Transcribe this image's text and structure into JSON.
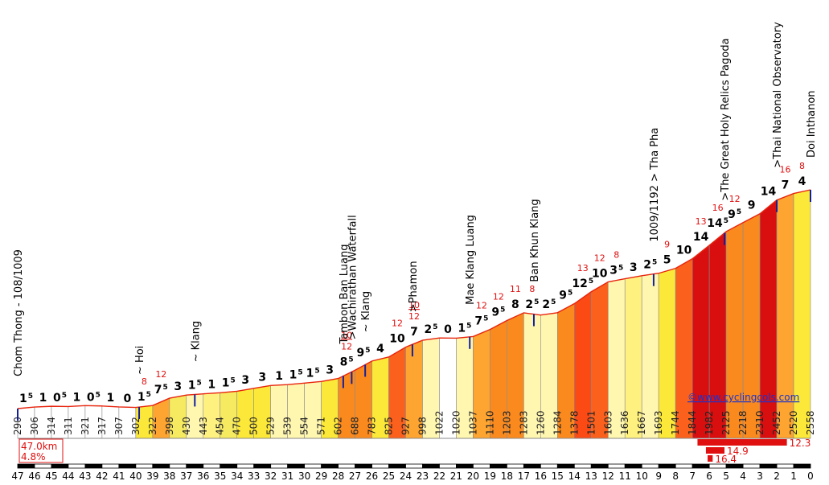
{
  "chart_data": {
    "type": "area",
    "title": "",
    "xlabel": "",
    "ylabel": "",
    "x_reversed": true,
    "x_ticks": [
      "47",
      "46",
      "45",
      "44",
      "43",
      "42",
      "41",
      "40",
      "39",
      "38",
      "37",
      "36",
      "35",
      "34",
      "33",
      "32",
      "31",
      "30",
      "29",
      "28",
      "27",
      "26",
      "25",
      "24",
      "23",
      "22",
      "21",
      "20",
      "19",
      "18",
      "17",
      "16",
      "15",
      "14",
      "13",
      "12",
      "11",
      "10",
      "9",
      "8",
      "7",
      "6",
      "5",
      "4",
      "3",
      "2",
      "1",
      "0"
    ],
    "elevations": [
      290,
      306,
      314,
      311,
      321,
      317,
      307,
      302,
      322,
      398,
      430,
      443,
      454,
      470,
      500,
      529,
      539,
      554,
      571,
      602,
      688,
      783,
      825,
      927,
      998,
      1022,
      1020,
      1037,
      1110,
      1203,
      1283,
      1260,
      1284,
      1378,
      1501,
      1603,
      1636,
      1667,
      1693,
      1744,
      1844,
      1982,
      2125,
      2218,
      2310,
      2452,
      2520,
      2558
    ],
    "gradients": [
      "1.5",
      "1",
      "0.5",
      "1",
      "0.5",
      "1",
      "0",
      "1.5",
      "7.5",
      "3",
      "1.5",
      "1",
      "1.5",
      "3",
      "3",
      "1",
      "1.5",
      "1.5",
      "3",
      "8.5",
      "9.5",
      "4",
      "10",
      "7",
      "2.5",
      "0",
      "1.5",
      "7.5",
      "9.5",
      "8",
      "2.5",
      "2.5",
      "9.5",
      "12.5",
      "10",
      "3.5",
      "3",
      "2.5",
      "5",
      "10",
      "14",
      "14.5",
      "9.5",
      "9",
      "14",
      "7",
      "4"
    ],
    "peak_gradients": [
      "",
      "",
      "",
      "",
      "",
      "",
      "",
      "8",
      "12",
      "",
      "",
      "",
      "",
      "",
      "",
      "",
      "",
      "",
      "",
      "10/12",
      "",
      "",
      "12",
      "10/12",
      "",
      "",
      "",
      "12",
      "12",
      "11",
      "8",
      "",
      "",
      "13",
      "12",
      "8",
      "",
      "",
      "9",
      "",
      "13",
      "16",
      "12",
      "",
      "",
      "16",
      "8"
    ],
    "segment_colors": [
      "#ffffff",
      "#ffffff",
      "#ffffff",
      "#ffffff",
      "#ffffff",
      "#ffffff",
      "#ffffff",
      "#fce838",
      "#fda530",
      "#f5ea60",
      "#fff6b0",
      "#fff180",
      "#f5ea60",
      "#fce838",
      "#fce838",
      "#fff6b0",
      "#fff6b0",
      "#fff6b0",
      "#fce838",
      "#fb8a1e",
      "#fb8a1e",
      "#fce838",
      "#fb611c",
      "#fda530",
      "#fff6b0",
      "#ffffff",
      "#fff6b0",
      "#fda530",
      "#fb8a1e",
      "#fb8a1e",
      "#fff6b0",
      "#fff6b0",
      "#fb8a1e",
      "#fb4a14",
      "#fb611c",
      "#fff6b0",
      "#fff180",
      "#fff6b0",
      "#fce838",
      "#fb611c",
      "#d90f0f",
      "#d90f0f",
      "#fb8a1e",
      "#fb8a1e",
      "#d90f0f",
      "#fda530",
      "#fce838"
    ],
    "places": [
      {
        "label": "Chom Thong - 108/1009",
        "km": 47
      },
      {
        "label": "~ Hoi",
        "km": 39.8
      },
      {
        "label": "~ Klang",
        "km": 36.5
      },
      {
        "label": "Tambon Ban Luang",
        "km": 27.7
      },
      {
        "label": ">Wachirathan Waterfall",
        "km": 27.2
      },
      {
        "label": "~ Klang",
        "km": 26.4
      },
      {
        "label": ">Phamon",
        "km": 23.6
      },
      {
        "label": "Mae Klang Luang",
        "km": 20.2
      },
      {
        "label": "Ban Khun Klang",
        "km": 16.4
      },
      {
        "label": "1009/1192 > Tha Pha",
        "km": 9.3
      },
      {
        "label": ">The Great Holy Relics Pagoda",
        "km": 5.1
      },
      {
        "label": ">Thai National Observatory",
        "km": 2
      },
      {
        "label": "Doi Inthanon",
        "km": 0
      }
    ],
    "summary": {
      "distance": "47.0km",
      "avg_gradient": "4.8%"
    },
    "best_bars": [
      {
        "label": "12.3",
        "from_km": 6.7,
        "to_km": 1.4
      },
      {
        "label": "14.9",
        "from_km": 6.2,
        "to_km": 5.1
      },
      {
        "label": "16.4",
        "from_km": 6.1,
        "to_km": 5.8
      }
    ],
    "source": "©www.cyclingcols.com",
    "colors": {
      "outline": "#e8240d",
      "marker": "#1220a0",
      "text": "#000000",
      "steep": "#e01010"
    }
  }
}
